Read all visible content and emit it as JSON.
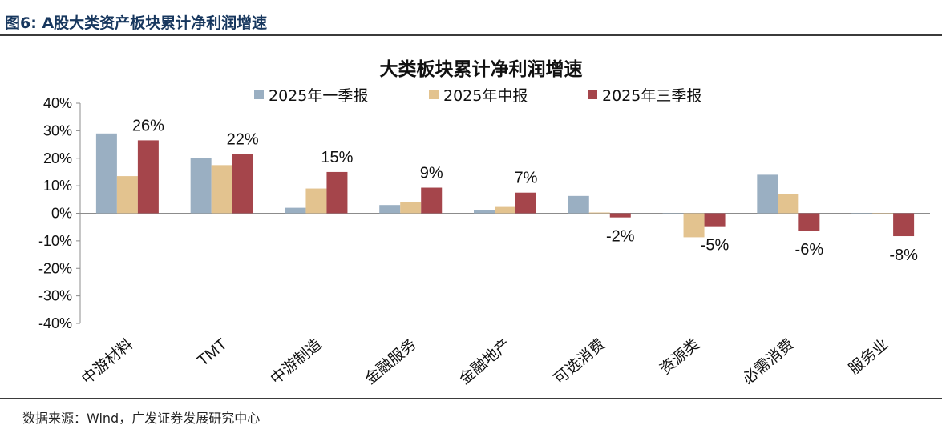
{
  "figure": {
    "label": "图6:",
    "caption": "A股大类资产板块累计净利润增速"
  },
  "source": "数据来源：Wind，广发证券发展研究中心",
  "chart_data": {
    "type": "bar",
    "title": "大类板块累计净利润增速",
    "categories": [
      "中游材料",
      "TMT",
      "中游制造",
      "金融服务",
      "金融地产",
      "可选消费",
      "资源类",
      "必需消费",
      "服务业"
    ],
    "series": [
      {
        "name": "2025年一季报",
        "color": "#9aafc2",
        "values": [
          29,
          20,
          2,
          3,
          1.3,
          6.3,
          -0.3,
          14,
          0
        ]
      },
      {
        "name": "2025年中报",
        "color": "#e3c38f",
        "values": [
          13.5,
          17.5,
          9,
          4.2,
          2.3,
          0.3,
          -8.7,
          7,
          0
        ]
      },
      {
        "name": "2025年三季报",
        "color": "#a5454b",
        "values": [
          26.5,
          21.5,
          15,
          9.3,
          7.5,
          -1.5,
          -4.7,
          -6.3,
          -8.3
        ]
      }
    ],
    "data_labels": [
      "26%",
      "22%",
      "15%",
      "9%",
      "7%",
      "-2%",
      "-5%",
      "-6%",
      "-8%"
    ],
    "ylim": [
      -40,
      40
    ],
    "yticks": [
      "40%",
      "30%",
      "20%",
      "10%",
      "0%",
      "-10%",
      "-20%",
      "-30%",
      "-40%"
    ],
    "xlabel": "",
    "ylabel": "",
    "grid": false,
    "legend": "top"
  }
}
